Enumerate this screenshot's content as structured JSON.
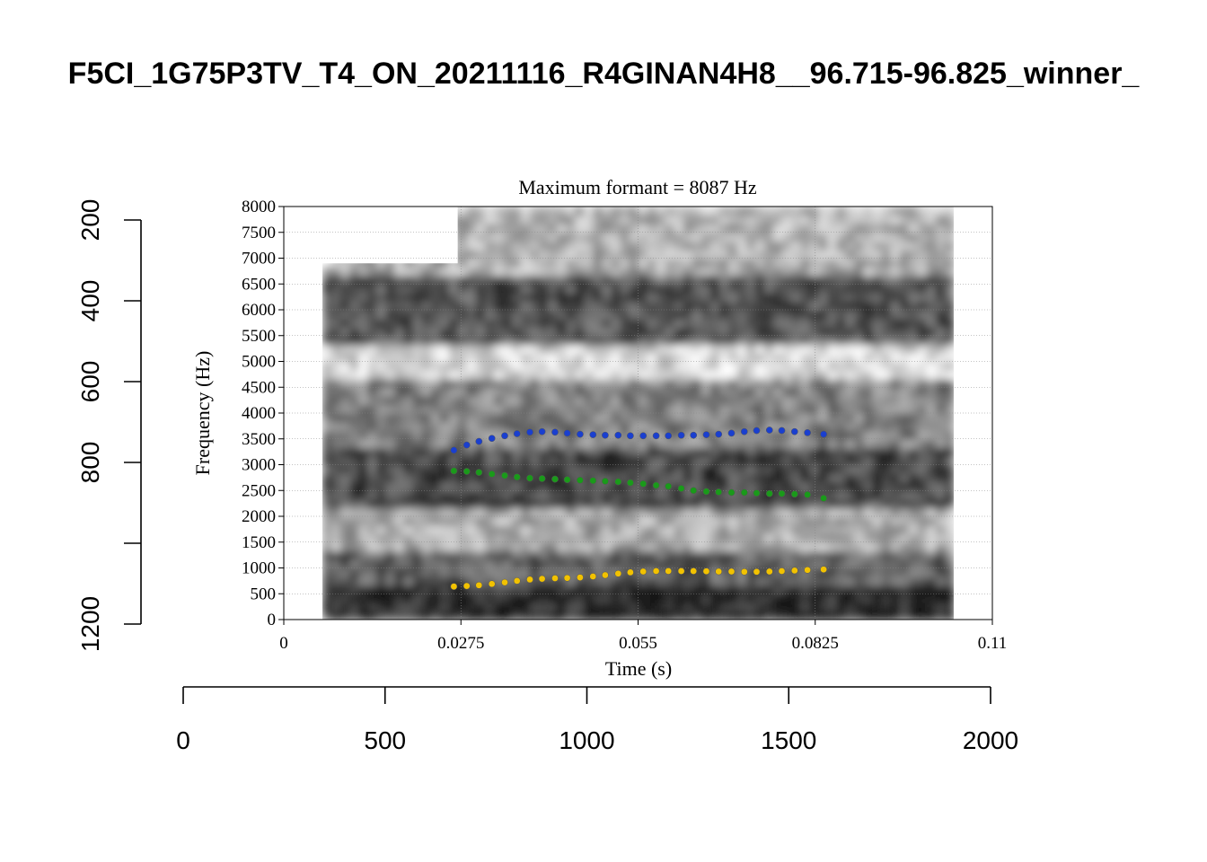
{
  "page_title": "F5CI_1G75P3TV_T4_ON_20211116_R4GINAN4H8__96.715-96.825_winner_",
  "outer_axes": {
    "x": {
      "ticks": [
        0,
        500,
        1000,
        1500,
        2000
      ],
      "range": [
        0,
        2000
      ]
    },
    "y": {
      "ticks": [
        200,
        400,
        600,
        800,
        1000,
        1200
      ],
      "tick_labels": [
        "200",
        "400",
        "600",
        "800",
        "",
        "1200"
      ],
      "range": [
        200,
        1200
      ],
      "reversed": true
    }
  },
  "colors": {
    "f1": "#f2c200",
    "f2": "#1a9a1a",
    "f3": "#1a3fcf",
    "axis": "#000000"
  },
  "chart_data": {
    "type": "scatter",
    "title": "Maximum formant  =  8087 Hz",
    "xlabel": "Time (s)",
    "ylabel": "Frequency (Hz)",
    "xlim": [
      0,
      0.11
    ],
    "ylim": [
      0,
      8000
    ],
    "x_ticks": [
      0,
      0.0275,
      0.055,
      0.0825,
      0.11
    ],
    "x_tick_labels": [
      "0",
      "0.0275",
      "0.055",
      "0.0825",
      "0.11"
    ],
    "y_ticks": [
      0,
      500,
      1000,
      1500,
      2000,
      2500,
      3000,
      3500,
      4000,
      4500,
      5000,
      5500,
      6000,
      6500,
      7000,
      7500,
      8000
    ],
    "background": "spectrogram (grayscale), time 0.006–0.104 s",
    "grid": true,
    "series": [
      {
        "id": "F1",
        "x": [
          0.0264,
          0.0284,
          0.0303,
          0.0323,
          0.0343,
          0.0362,
          0.0382,
          0.0401,
          0.0421,
          0.044,
          0.046,
          0.048,
          0.0499,
          0.0519,
          0.0538,
          0.0558,
          0.0578,
          0.0597,
          0.0617,
          0.0636,
          0.0656,
          0.0675,
          0.0695,
          0.0715,
          0.0734,
          0.0754,
          0.0773,
          0.0793,
          0.0813,
          0.0838
        ],
        "y": [
          640,
          650,
          665,
          690,
          720,
          750,
          775,
          790,
          800,
          805,
          815,
          835,
          860,
          890,
          915,
          930,
          940,
          940,
          940,
          940,
          935,
          930,
          930,
          925,
          925,
          930,
          940,
          950,
          960,
          970
        ]
      },
      {
        "id": "F2",
        "x": [
          0.0264,
          0.0284,
          0.0303,
          0.0323,
          0.0343,
          0.0362,
          0.0382,
          0.0401,
          0.0421,
          0.044,
          0.046,
          0.048,
          0.0499,
          0.0519,
          0.0538,
          0.0558,
          0.0578,
          0.0597,
          0.0617,
          0.0636,
          0.0656,
          0.0675,
          0.0695,
          0.0715,
          0.0734,
          0.0754,
          0.0773,
          0.0793,
          0.0813,
          0.0838
        ],
        "y": [
          2880,
          2870,
          2850,
          2820,
          2790,
          2760,
          2740,
          2730,
          2720,
          2710,
          2700,
          2690,
          2680,
          2670,
          2650,
          2630,
          2600,
          2580,
          2540,
          2500,
          2480,
          2470,
          2460,
          2460,
          2450,
          2440,
          2440,
          2430,
          2420,
          2350
        ]
      },
      {
        "id": "F3",
        "x": [
          0.0264,
          0.0284,
          0.0303,
          0.0323,
          0.0343,
          0.0362,
          0.0382,
          0.0401,
          0.0421,
          0.044,
          0.046,
          0.048,
          0.0499,
          0.0519,
          0.0538,
          0.0558,
          0.0578,
          0.0597,
          0.0617,
          0.0636,
          0.0656,
          0.0675,
          0.0695,
          0.0715,
          0.0734,
          0.0754,
          0.0773,
          0.0793,
          0.0813,
          0.0838
        ],
        "y": [
          3280,
          3380,
          3450,
          3510,
          3560,
          3600,
          3630,
          3640,
          3630,
          3610,
          3590,
          3580,
          3570,
          3570,
          3560,
          3560,
          3560,
          3560,
          3570,
          3570,
          3580,
          3590,
          3610,
          3640,
          3660,
          3670,
          3660,
          3640,
          3620,
          3590
        ]
      }
    ]
  }
}
